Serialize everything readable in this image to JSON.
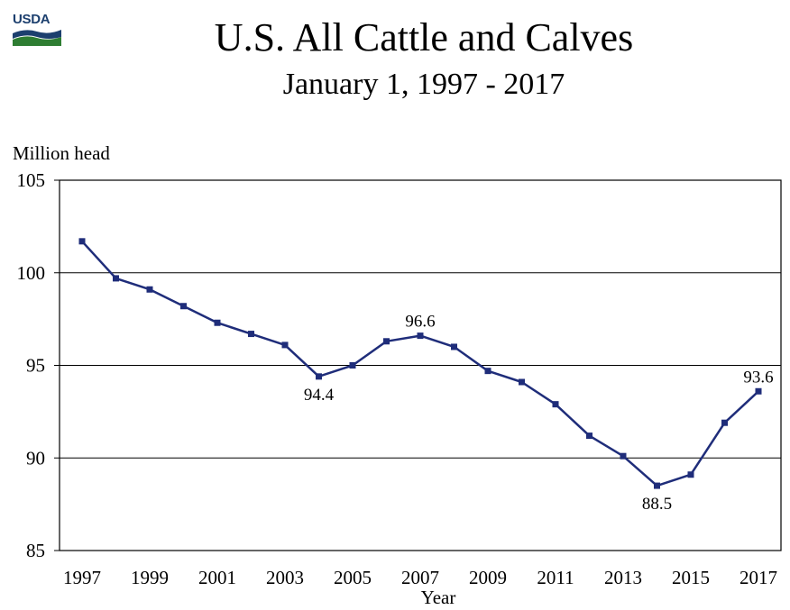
{
  "logo": {
    "text": "USDA"
  },
  "title": "U.S. All Cattle and Calves",
  "subtitle": "January 1, 1997 - 2017",
  "chart_data": {
    "type": "line",
    "title": "U.S. All Cattle and Calves",
    "subtitle": "January 1, 1997 - 2017",
    "ylabel": "Million head",
    "xlabel": "Year",
    "ylim": [
      85,
      105
    ],
    "xlim": [
      1997,
      2017
    ],
    "y_ticks": [
      85,
      90,
      95,
      100,
      105
    ],
    "x_ticks": [
      1997,
      1999,
      2001,
      2003,
      2005,
      2007,
      2009,
      2011,
      2013,
      2015,
      2017
    ],
    "grid": "horizontal",
    "line_color": "#1f2d7a",
    "series": [
      {
        "x": [
          1997,
          1998,
          1999,
          2000,
          2001,
          2002,
          2003,
          2004,
          2005,
          2006,
          2007,
          2008,
          2009,
          2010,
          2011,
          2012,
          2013,
          2014,
          2015,
          2016,
          2017
        ],
        "values": [
          101.7,
          99.7,
          99.1,
          98.2,
          97.3,
          96.7,
          96.1,
          94.4,
          95.0,
          96.3,
          96.6,
          96.0,
          94.7,
          94.1,
          92.9,
          91.2,
          90.1,
          88.5,
          89.1,
          91.9,
          93.6
        ]
      }
    ],
    "annotations": [
      {
        "x": 2004,
        "label": "94.4",
        "position": "below"
      },
      {
        "x": 2007,
        "label": "96.6",
        "position": "above"
      },
      {
        "x": 2014,
        "label": "88.5",
        "position": "below"
      },
      {
        "x": 2017,
        "label": "93.6",
        "position": "above"
      }
    ]
  }
}
